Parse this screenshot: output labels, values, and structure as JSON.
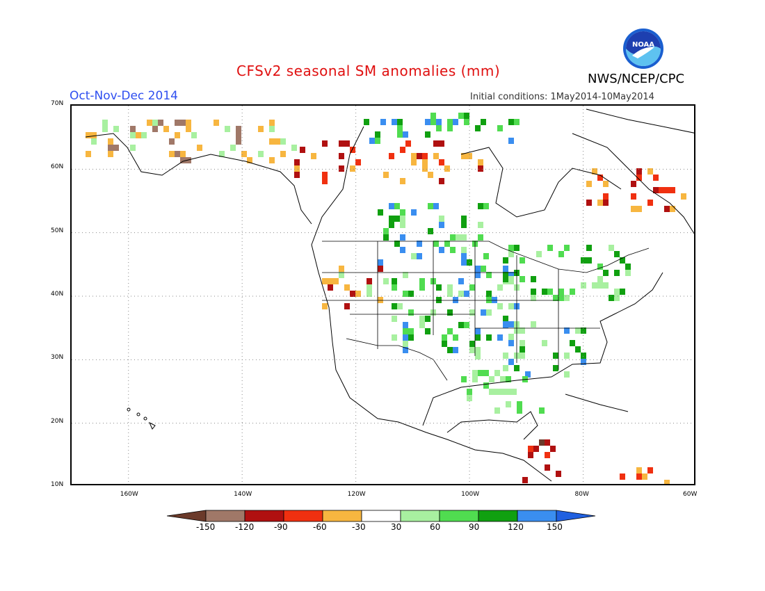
{
  "header": {
    "title": "CFSv2 seasonal SM anomalies (mm)",
    "season": "Oct-Nov-Dec 2014",
    "initial_conditions": "Initial conditions: 1May2014-10May2014",
    "agency": "NWS/NCEP/CPC",
    "logo_text": "NOAA"
  },
  "map": {
    "lat_labels": [
      "70N",
      "60N",
      "50N",
      "40N",
      "30N",
      "20N",
      "10N"
    ],
    "lon_labels": [
      "160W",
      "140W",
      "120W",
      "100W",
      "80W",
      "60W"
    ],
    "extent": {
      "lon": [
        -170,
        -60
      ],
      "lat": [
        10,
        70
      ]
    }
  },
  "legend": {
    "labels": [
      "-150",
      "-120",
      "-90",
      "-60",
      "-30",
      "30",
      "60",
      "90",
      "120",
      "150"
    ],
    "colors": [
      "#6b3a2a",
      "#a07868",
      "#b01010",
      "#f03010",
      "#f7b640",
      "#ffffff",
      "#a8f0a0",
      "#50dc50",
      "#10a010",
      "#3a8ef0",
      "#2060e0"
    ]
  }
}
